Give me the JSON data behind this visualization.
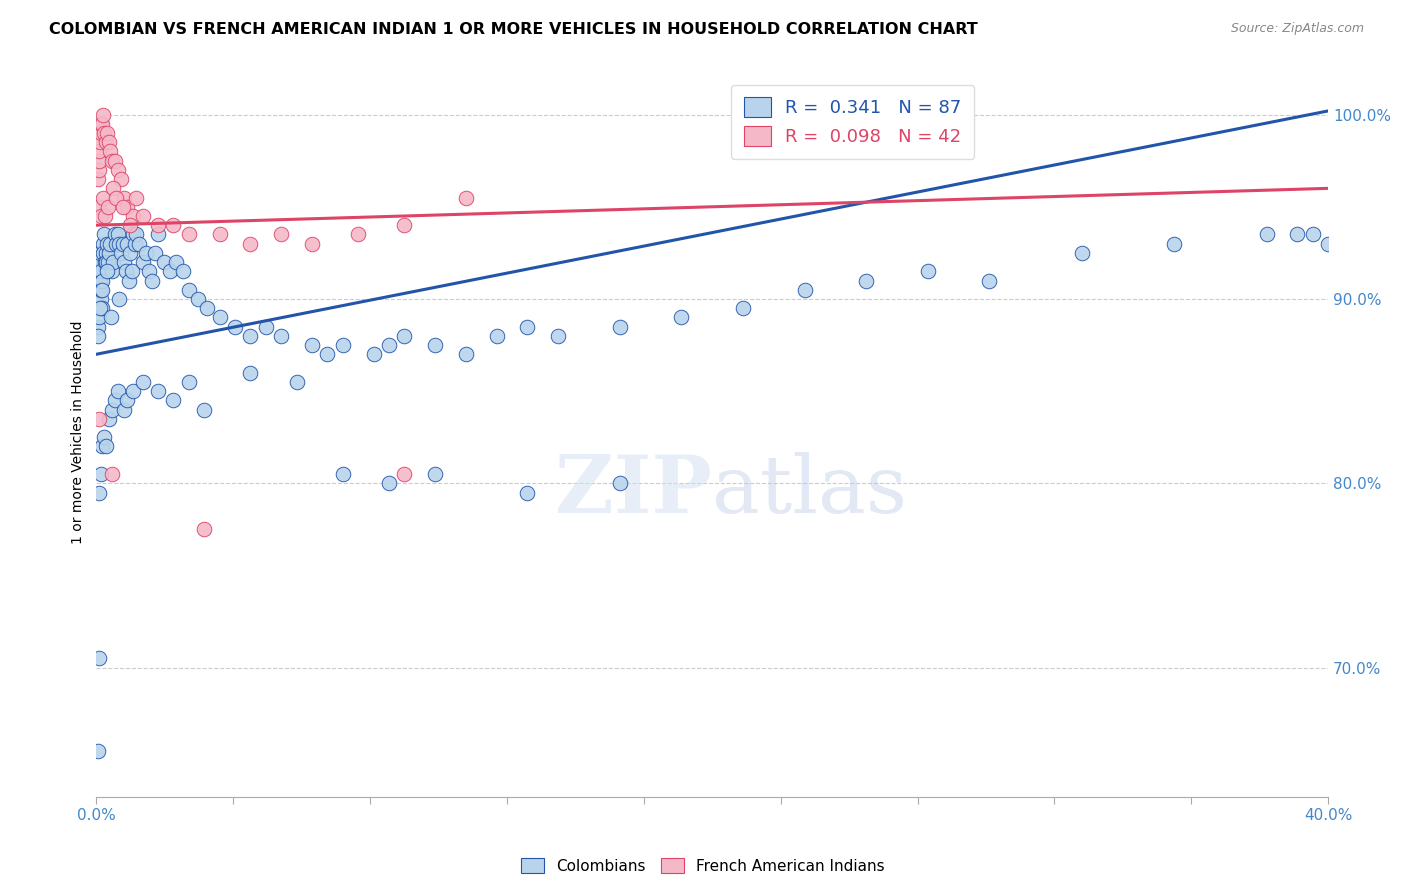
{
  "title": "COLOMBIAN VS FRENCH AMERICAN INDIAN 1 OR MORE VEHICLES IN HOUSEHOLD CORRELATION CHART",
  "source": "Source: ZipAtlas.com",
  "ylabel": "1 or more Vehicles in Household",
  "xmin": 0.0,
  "xmax": 40.0,
  "ymin": 63.0,
  "ymax": 102.5,
  "yticks": [
    70.0,
    80.0,
    90.0,
    100.0
  ],
  "ytick_labels": [
    "70.0%",
    "80.0%",
    "90.0%",
    "100.0%"
  ],
  "legend_blue_r": "0.341",
  "legend_blue_n": "87",
  "legend_pink_r": "0.098",
  "legend_pink_n": "42",
  "blue_color": "#b8d4ec",
  "pink_color": "#f5b8c8",
  "blue_line_color": "#2255aa",
  "pink_line_color": "#dd4466",
  "title_fontsize": 11.5,
  "source_fontsize": 9,
  "axis_label_color": "#4488cc",
  "blue_x": [
    0.05,
    0.07,
    0.08,
    0.09,
    0.1,
    0.12,
    0.13,
    0.14,
    0.15,
    0.16,
    0.17,
    0.18,
    0.2,
    0.22,
    0.25,
    0.28,
    0.3,
    0.32,
    0.35,
    0.38,
    0.4,
    0.45,
    0.5,
    0.55,
    0.6,
    0.65,
    0.7,
    0.75,
    0.8,
    0.85,
    0.9,
    0.95,
    1.0,
    1.05,
    1.1,
    1.15,
    1.2,
    1.25,
    1.3,
    1.4,
    1.5,
    1.6,
    1.7,
    1.8,
    1.9,
    2.0,
    2.2,
    2.4,
    2.6,
    2.8,
    3.0,
    3.3,
    3.6,
    4.0,
    4.5,
    5.0,
    5.5,
    6.0,
    7.0,
    7.5,
    8.0,
    9.0,
    9.5,
    10.0,
    11.0,
    12.0,
    13.0,
    14.0,
    15.0,
    17.0,
    19.0,
    21.0,
    23.0,
    25.0,
    27.0,
    29.0,
    32.0,
    35.0,
    38.0,
    39.0,
    39.5,
    40.0,
    0.06,
    0.11,
    0.19,
    0.33,
    0.48,
    0.72
  ],
  "blue_y": [
    88.5,
    89.0,
    90.5,
    91.5,
    92.0,
    91.0,
    92.5,
    90.0,
    91.5,
    90.5,
    89.5,
    91.0,
    93.0,
    92.5,
    93.5,
    92.0,
    92.5,
    92.0,
    93.0,
    92.0,
    92.5,
    93.0,
    91.5,
    92.0,
    93.5,
    93.0,
    93.5,
    93.0,
    92.5,
    93.0,
    92.0,
    91.5,
    93.0,
    91.0,
    92.5,
    91.5,
    93.5,
    93.0,
    93.5,
    93.0,
    92.0,
    92.5,
    91.5,
    91.0,
    92.5,
    93.5,
    92.0,
    91.5,
    92.0,
    91.5,
    90.5,
    90.0,
    89.5,
    89.0,
    88.5,
    88.0,
    88.5,
    88.0,
    87.5,
    87.0,
    87.5,
    87.0,
    87.5,
    88.0,
    87.5,
    87.0,
    88.0,
    88.5,
    88.0,
    88.5,
    89.0,
    89.5,
    90.5,
    91.0,
    91.5,
    91.0,
    92.5,
    93.0,
    93.5,
    93.5,
    93.5,
    93.0,
    88.0,
    89.5,
    90.5,
    91.5,
    89.0,
    90.0
  ],
  "blue_y_outliers": [
    [
      0.05,
      65.5
    ],
    [
      0.08,
      70.5
    ],
    [
      0.1,
      79.5
    ],
    [
      0.15,
      80.5
    ],
    [
      0.18,
      82.0
    ],
    [
      0.25,
      82.5
    ],
    [
      0.3,
      82.0
    ],
    [
      0.4,
      83.5
    ],
    [
      0.5,
      84.0
    ],
    [
      0.6,
      84.5
    ],
    [
      0.7,
      85.0
    ],
    [
      0.9,
      84.0
    ],
    [
      1.0,
      84.5
    ],
    [
      1.2,
      85.0
    ],
    [
      1.5,
      85.5
    ],
    [
      2.0,
      85.0
    ],
    [
      2.5,
      84.5
    ],
    [
      3.0,
      85.5
    ],
    [
      3.5,
      84.0
    ],
    [
      5.0,
      86.0
    ],
    [
      6.5,
      85.5
    ],
    [
      8.0,
      80.5
    ],
    [
      9.5,
      80.0
    ],
    [
      11.0,
      80.5
    ],
    [
      14.0,
      79.5
    ],
    [
      17.0,
      80.0
    ]
  ],
  "pink_x": [
    0.05,
    0.07,
    0.08,
    0.1,
    0.12,
    0.14,
    0.16,
    0.18,
    0.2,
    0.25,
    0.3,
    0.35,
    0.4,
    0.45,
    0.5,
    0.6,
    0.7,
    0.8,
    0.9,
    1.0,
    1.2,
    1.5,
    2.0,
    2.5,
    3.0,
    4.0,
    5.0,
    6.0,
    7.0,
    8.5,
    10.0,
    12.0,
    0.1,
    0.15,
    0.22,
    0.28,
    0.38,
    0.55,
    0.65,
    0.85,
    1.1,
    1.3
  ],
  "pink_y": [
    96.5,
    97.0,
    97.5,
    98.0,
    98.5,
    99.0,
    99.5,
    99.5,
    100.0,
    99.0,
    98.5,
    99.0,
    98.5,
    98.0,
    97.5,
    97.5,
    97.0,
    96.5,
    95.5,
    95.0,
    94.5,
    94.5,
    94.0,
    94.0,
    93.5,
    93.5,
    93.0,
    93.5,
    93.0,
    93.5,
    94.0,
    95.5,
    95.0,
    94.5,
    95.5,
    94.5,
    95.0,
    96.0,
    95.5,
    95.0,
    94.0,
    95.5
  ],
  "pink_y_outliers": [
    [
      0.08,
      83.5
    ],
    [
      0.5,
      80.5
    ],
    [
      3.5,
      77.5
    ],
    [
      10.0,
      80.5
    ]
  ]
}
